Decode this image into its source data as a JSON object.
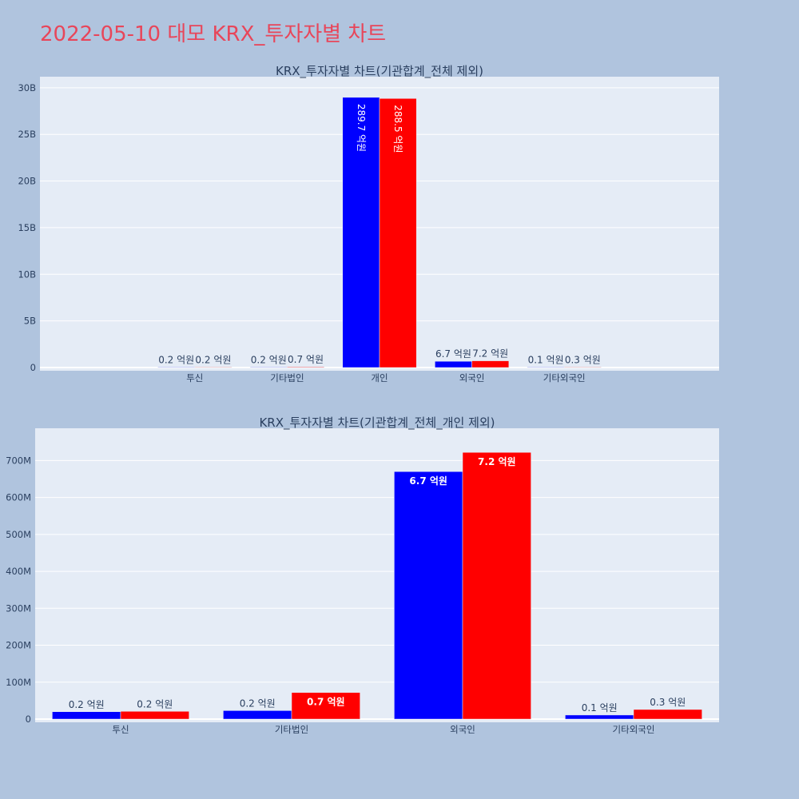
{
  "page": {
    "title": "2022-05-10 대모 KRX_투자자별 차트"
  },
  "colors": {
    "background": "#b0c4de",
    "plot_bg": "#e5ecf6",
    "title": "#e8465a",
    "series1": "#0000ff",
    "series2": "#ff0000"
  },
  "chart_data": [
    {
      "type": "bar",
      "title": "KRX_투자자별 차트(기관합계_전체 제외)",
      "categories": [
        "투신",
        "기타법인",
        "개인",
        "외국인",
        "기타외국인"
      ],
      "series": [
        {
          "color": "#0000ff",
          "values": [
            20000000,
            20000000,
            28970000000,
            670000000,
            10000000
          ],
          "labels": [
            "0.2 억원",
            "0.2 억원",
            "289.7 억원",
            "6.7 억원",
            "0.1 억원"
          ]
        },
        {
          "color": "#ff0000",
          "values": [
            20000000,
            70000000,
            28850000000,
            720000000,
            30000000
          ],
          "labels": [
            "0.2 억원",
            "0.7 억원",
            "288.5 억원",
            "7.2 억원",
            "0.3 억원"
          ]
        }
      ],
      "ylim": [
        0,
        30500000000
      ],
      "yticks": [
        0,
        5000000000,
        10000000000,
        15000000000,
        20000000000,
        25000000000,
        30000000000
      ],
      "ytick_labels": [
        "0",
        "5B",
        "10B",
        "15B",
        "20B",
        "25B",
        "30B"
      ],
      "grid": true
    },
    {
      "type": "bar",
      "title": "KRX_투자자별 차트(기관합계_전체_개인 제외)",
      "categories": [
        "투신",
        "기타법인",
        "외국인",
        "기타외국인"
      ],
      "series": [
        {
          "color": "#0000ff",
          "values": [
            20000000,
            23000000,
            670000000,
            11000000
          ],
          "labels": [
            "0.2 억원",
            "0.2 억원",
            "6.7 억원",
            "0.1 억원"
          ]
        },
        {
          "color": "#ff0000",
          "values": [
            21000000,
            72000000,
            722000000,
            26000000
          ],
          "labels": [
            "0.2 억원",
            "0.7 억원",
            "7.2 억원",
            "0.3 억원"
          ]
        }
      ],
      "ylim": [
        0,
        770000000
      ],
      "yticks": [
        0,
        100000000,
        200000000,
        300000000,
        400000000,
        500000000,
        600000000,
        700000000
      ],
      "ytick_labels": [
        "0",
        "100M",
        "200M",
        "300M",
        "400M",
        "500M",
        "600M",
        "700M"
      ],
      "grid": true
    }
  ]
}
